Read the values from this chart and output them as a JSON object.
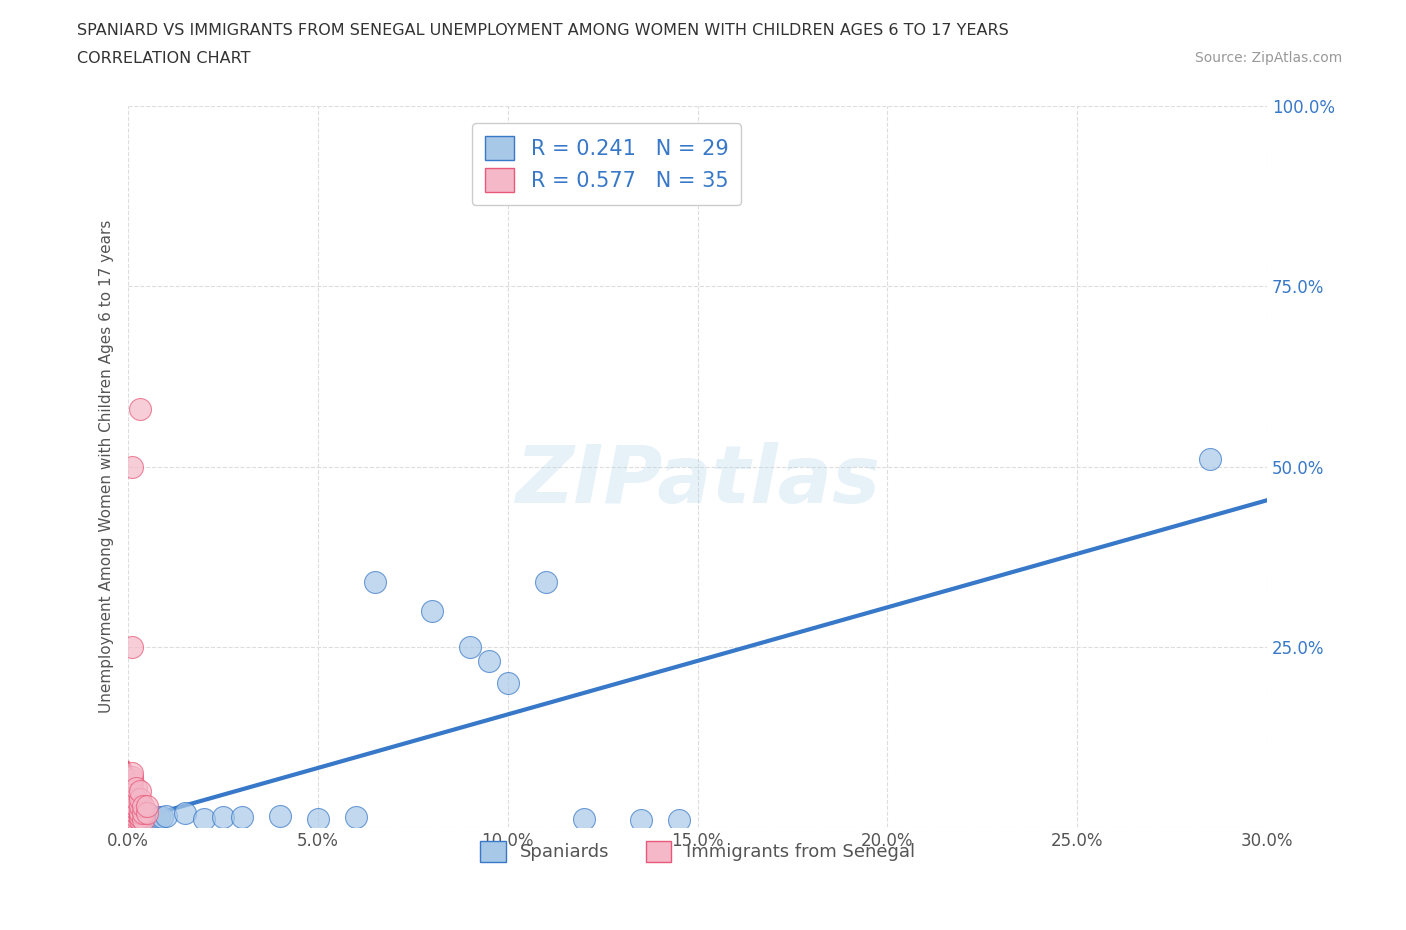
{
  "title_line1": "SPANIARD VS IMMIGRANTS FROM SENEGAL UNEMPLOYMENT AMONG WOMEN WITH CHILDREN AGES 6 TO 17 YEARS",
  "title_line2": "CORRELATION CHART",
  "source": "Source: ZipAtlas.com",
  "ylabel": "Unemployment Among Women with Children Ages 6 to 17 years",
  "watermark": "ZIPatlas",
  "xlim": [
    0.0,
    0.3
  ],
  "ylim": [
    0.0,
    1.0
  ],
  "xticks": [
    0.0,
    0.05,
    0.1,
    0.15,
    0.2,
    0.25,
    0.3
  ],
  "yticks": [
    0.0,
    0.25,
    0.5,
    0.75,
    1.0
  ],
  "blue_R": 0.241,
  "blue_N": 29,
  "pink_R": 0.577,
  "pink_N": 35,
  "blue_color": "#a8c8e8",
  "pink_color": "#f4b8c8",
  "blue_line_color": "#3878c8",
  "pink_line_color": "#e85878",
  "legend_blue_label": "Spaniards",
  "legend_pink_label": "Immigrants from Senegal",
  "blue_dots": [
    [
      0.001,
      0.02
    ],
    [
      0.002,
      0.018
    ],
    [
      0.003,
      0.015
    ],
    [
      0.003,
      0.022
    ],
    [
      0.004,
      0.018
    ],
    [
      0.005,
      0.015
    ],
    [
      0.005,
      0.02
    ],
    [
      0.006,
      0.016
    ],
    [
      0.007,
      0.012
    ],
    [
      0.008,
      0.014
    ],
    [
      0.009,
      0.015
    ],
    [
      0.01,
      0.016
    ],
    [
      0.015,
      0.02
    ],
    [
      0.02,
      0.012
    ],
    [
      0.025,
      0.015
    ],
    [
      0.03,
      0.014
    ],
    [
      0.04,
      0.016
    ],
    [
      0.05,
      0.012
    ],
    [
      0.06,
      0.014
    ],
    [
      0.065,
      0.34
    ],
    [
      0.08,
      0.3
    ],
    [
      0.09,
      0.25
    ],
    [
      0.095,
      0.23
    ],
    [
      0.1,
      0.2
    ],
    [
      0.11,
      0.34
    ],
    [
      0.12,
      0.012
    ],
    [
      0.135,
      0.01
    ],
    [
      0.145,
      0.01
    ],
    [
      0.285,
      0.51
    ]
  ],
  "pink_dots": [
    [
      0.001,
      0.01
    ],
    [
      0.001,
      0.015
    ],
    [
      0.001,
      0.02
    ],
    [
      0.001,
      0.025
    ],
    [
      0.001,
      0.03
    ],
    [
      0.001,
      0.035
    ],
    [
      0.001,
      0.04
    ],
    [
      0.001,
      0.045
    ],
    [
      0.001,
      0.05
    ],
    [
      0.001,
      0.055
    ],
    [
      0.001,
      0.06
    ],
    [
      0.001,
      0.065
    ],
    [
      0.001,
      0.07
    ],
    [
      0.001,
      0.075
    ],
    [
      0.002,
      0.01
    ],
    [
      0.002,
      0.015
    ],
    [
      0.002,
      0.02
    ],
    [
      0.002,
      0.025
    ],
    [
      0.002,
      0.03
    ],
    [
      0.002,
      0.04
    ],
    [
      0.002,
      0.055
    ],
    [
      0.003,
      0.01
    ],
    [
      0.003,
      0.015
    ],
    [
      0.003,
      0.02
    ],
    [
      0.003,
      0.03
    ],
    [
      0.003,
      0.04
    ],
    [
      0.003,
      0.05
    ],
    [
      0.004,
      0.01
    ],
    [
      0.004,
      0.02
    ],
    [
      0.004,
      0.03
    ],
    [
      0.005,
      0.02
    ],
    [
      0.005,
      0.03
    ],
    [
      0.001,
      0.25
    ],
    [
      0.001,
      0.5
    ],
    [
      0.003,
      0.58
    ]
  ],
  "background_color": "#ffffff",
  "grid_color": "#dddddd"
}
